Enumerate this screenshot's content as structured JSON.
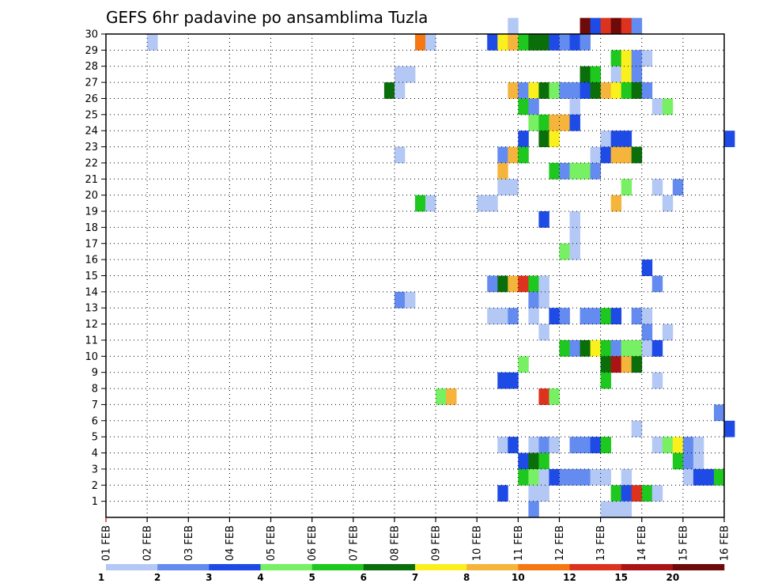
{
  "chart_data": {
    "type": "heatmap",
    "title": "GEFS 6hr padavine po ansamblima Tuzla",
    "xlabel": "",
    "ylabel": "",
    "x_range": [
      "01 FEB",
      "16 FEB"
    ],
    "x_steps_per_day": 4,
    "x_tick_labels": [
      "01 FEB",
      "02 FEB",
      "03 FEB",
      "04 FEB",
      "05 FEB",
      "06 FEB",
      "07 FEB",
      "08 FEB",
      "09 FEB",
      "10 FEB",
      "11 FEB",
      "12 FEB",
      "13 FEB",
      "14 FEB",
      "15 FEB",
      "16 FEB"
    ],
    "y_tick_labels": [
      "1",
      "2",
      "3",
      "4",
      "5",
      "6",
      "7",
      "8",
      "9",
      "10",
      "11",
      "12",
      "13",
      "14",
      "15",
      "16",
      "17",
      "18",
      "19",
      "20",
      "21",
      "22",
      "23",
      "24",
      "25",
      "26",
      "27",
      "28",
      "29",
      "30"
    ],
    "ylim": [
      0,
      30
    ],
    "grid": true,
    "legend": {
      "placement": "bottom",
      "labels": [
        "1",
        "2",
        "3",
        "4",
        "5",
        "6",
        "7",
        "8",
        "10",
        "12",
        "15",
        "20"
      ],
      "colors": [
        "#b4c8f5",
        "#648cf0",
        "#1e4be6",
        "#78f064",
        "#1ec81e",
        "#0a6e0a",
        "#faf01e",
        "#f5b43c",
        "#f57814",
        "#dc321e",
        "#aa1414",
        "#6e0a0a"
      ]
    },
    "cells": [
      [
        30,
        46,
        11
      ],
      [
        30,
        47,
        2
      ],
      [
        30,
        48,
        9
      ],
      [
        30,
        49,
        11
      ],
      [
        30,
        50,
        9
      ],
      [
        30,
        51,
        1
      ],
      [
        30,
        39,
        0
      ],
      [
        29,
        4,
        0
      ],
      [
        29,
        30,
        8
      ],
      [
        29,
        31,
        0
      ],
      [
        29,
        37,
        2
      ],
      [
        29,
        38,
        6
      ],
      [
        29,
        39,
        7
      ],
      [
        29,
        40,
        4
      ],
      [
        29,
        41,
        5
      ],
      [
        29,
        42,
        5
      ],
      [
        29,
        43,
        2
      ],
      [
        29,
        44,
        1
      ],
      [
        29,
        45,
        2
      ],
      [
        29,
        46,
        1
      ],
      [
        28,
        49,
        4
      ],
      [
        28,
        50,
        6
      ],
      [
        28,
        51,
        1
      ],
      [
        28,
        52,
        0
      ],
      [
        27,
        28,
        0
      ],
      [
        27,
        29,
        0
      ],
      [
        27,
        46,
        5
      ],
      [
        27,
        47,
        4
      ],
      [
        27,
        49,
        0
      ],
      [
        27,
        50,
        6
      ],
      [
        27,
        51,
        1
      ],
      [
        26,
        27,
        5
      ],
      [
        26,
        28,
        0
      ],
      [
        26,
        39,
        7
      ],
      [
        26,
        40,
        1
      ],
      [
        26,
        41,
        6
      ],
      [
        26,
        42,
        5
      ],
      [
        26,
        43,
        3
      ],
      [
        26,
        44,
        1
      ],
      [
        26,
        45,
        1
      ],
      [
        26,
        46,
        2
      ],
      [
        26,
        47,
        5
      ],
      [
        26,
        48,
        7
      ],
      [
        26,
        49,
        6
      ],
      [
        26,
        50,
        4
      ],
      [
        26,
        51,
        5
      ],
      [
        26,
        52,
        1
      ],
      [
        25,
        40,
        4
      ],
      [
        25,
        41,
        1
      ],
      [
        25,
        45,
        0
      ],
      [
        25,
        53,
        0
      ],
      [
        25,
        54,
        3
      ],
      [
        24,
        41,
        3
      ],
      [
        24,
        42,
        4
      ],
      [
        24,
        43,
        7
      ],
      [
        24,
        44,
        7
      ],
      [
        24,
        45,
        2
      ],
      [
        23,
        40,
        2
      ],
      [
        23,
        42,
        5
      ],
      [
        23,
        43,
        6
      ],
      [
        23,
        48,
        0
      ],
      [
        23,
        49,
        2
      ],
      [
        23,
        50,
        2
      ],
      [
        23,
        60,
        2
      ],
      [
        22,
        28,
        0
      ],
      [
        22,
        38,
        1
      ],
      [
        22,
        39,
        7
      ],
      [
        22,
        40,
        4
      ],
      [
        22,
        47,
        0
      ],
      [
        22,
        48,
        2
      ],
      [
        22,
        49,
        7
      ],
      [
        22,
        50,
        7
      ],
      [
        22,
        51,
        5
      ],
      [
        21,
        38,
        7
      ],
      [
        21,
        43,
        4
      ],
      [
        21,
        44,
        1
      ],
      [
        21,
        45,
        3
      ],
      [
        21,
        46,
        3
      ],
      [
        21,
        47,
        1
      ],
      [
        20,
        38,
        0
      ],
      [
        20,
        39,
        0
      ],
      [
        20,
        50,
        3
      ],
      [
        20,
        53,
        0
      ],
      [
        20,
        55,
        1
      ],
      [
        19,
        30,
        4
      ],
      [
        19,
        31,
        0
      ],
      [
        19,
        36,
        0
      ],
      [
        19,
        37,
        0
      ],
      [
        19,
        49,
        7
      ],
      [
        19,
        54,
        0
      ],
      [
        18,
        42,
        2
      ],
      [
        18,
        45,
        0
      ],
      [
        17,
        45,
        0
      ],
      [
        16,
        44,
        3
      ],
      [
        16,
        45,
        0
      ],
      [
        15,
        52,
        2
      ],
      [
        14,
        37,
        1
      ],
      [
        14,
        38,
        5
      ],
      [
        14,
        39,
        7
      ],
      [
        14,
        40,
        9
      ],
      [
        14,
        41,
        4
      ],
      [
        14,
        42,
        0
      ],
      [
        14,
        53,
        1
      ],
      [
        13,
        28,
        1
      ],
      [
        13,
        29,
        0
      ],
      [
        13,
        41,
        1
      ],
      [
        13,
        42,
        0
      ],
      [
        12,
        37,
        0
      ],
      [
        12,
        38,
        0
      ],
      [
        12,
        39,
        1
      ],
      [
        12,
        41,
        0
      ],
      [
        12,
        43,
        2
      ],
      [
        12,
        44,
        1
      ],
      [
        12,
        46,
        1
      ],
      [
        12,
        47,
        1
      ],
      [
        12,
        48,
        4
      ],
      [
        12,
        49,
        2
      ],
      [
        12,
        51,
        1
      ],
      [
        12,
        52,
        0
      ],
      [
        11,
        42,
        0
      ],
      [
        11,
        52,
        1
      ],
      [
        11,
        54,
        0
      ],
      [
        10,
        44,
        4
      ],
      [
        10,
        45,
        1
      ],
      [
        10,
        46,
        5
      ],
      [
        10,
        47,
        6
      ],
      [
        10,
        48,
        4
      ],
      [
        10,
        49,
        1
      ],
      [
        10,
        50,
        3
      ],
      [
        10,
        51,
        3
      ],
      [
        10,
        52,
        0
      ],
      [
        10,
        53,
        2
      ],
      [
        9,
        40,
        3
      ],
      [
        9,
        48,
        5
      ],
      [
        9,
        49,
        10
      ],
      [
        9,
        50,
        7
      ],
      [
        9,
        51,
        5
      ],
      [
        8,
        38,
        2
      ],
      [
        8,
        39,
        2
      ],
      [
        8,
        48,
        4
      ],
      [
        8,
        53,
        0
      ],
      [
        7,
        32,
        3
      ],
      [
        7,
        33,
        7
      ],
      [
        7,
        42,
        9
      ],
      [
        7,
        43,
        3
      ],
      [
        6,
        59,
        1
      ],
      [
        5,
        51,
        0
      ],
      [
        5,
        60,
        2
      ],
      [
        4,
        38,
        0
      ],
      [
        4,
        39,
        2
      ],
      [
        4,
        41,
        0
      ],
      [
        4,
        42,
        1
      ],
      [
        4,
        43,
        0
      ],
      [
        4,
        45,
        1
      ],
      [
        4,
        46,
        1
      ],
      [
        4,
        47,
        2
      ],
      [
        4,
        48,
        4
      ],
      [
        4,
        53,
        0
      ],
      [
        4,
        54,
        3
      ],
      [
        4,
        55,
        6
      ],
      [
        4,
        56,
        1
      ],
      [
        4,
        57,
        0
      ],
      [
        3,
        40,
        2
      ],
      [
        3,
        41,
        5
      ],
      [
        3,
        42,
        4
      ],
      [
        3,
        55,
        4
      ],
      [
        3,
        56,
        1
      ],
      [
        3,
        57,
        0
      ],
      [
        2,
        40,
        4
      ],
      [
        2,
        41,
        3
      ],
      [
        2,
        42,
        0
      ],
      [
        2,
        43,
        2
      ],
      [
        2,
        44,
        1
      ],
      [
        2,
        45,
        1
      ],
      [
        2,
        46,
        1
      ],
      [
        2,
        47,
        0
      ],
      [
        2,
        48,
        0
      ],
      [
        2,
        50,
        0
      ],
      [
        2,
        56,
        0
      ],
      [
        2,
        57,
        2
      ],
      [
        2,
        58,
        2
      ],
      [
        2,
        59,
        4
      ],
      [
        1,
        38,
        2
      ],
      [
        1,
        41,
        0
      ],
      [
        1,
        42,
        0
      ],
      [
        1,
        49,
        4
      ],
      [
        1,
        50,
        2
      ],
      [
        1,
        51,
        9
      ],
      [
        1,
        52,
        4
      ],
      [
        1,
        53,
        0
      ],
      [
        0,
        41,
        1
      ],
      [
        0,
        48,
        0
      ],
      [
        0,
        49,
        0
      ],
      [
        0,
        50,
        0
      ]
    ]
  }
}
